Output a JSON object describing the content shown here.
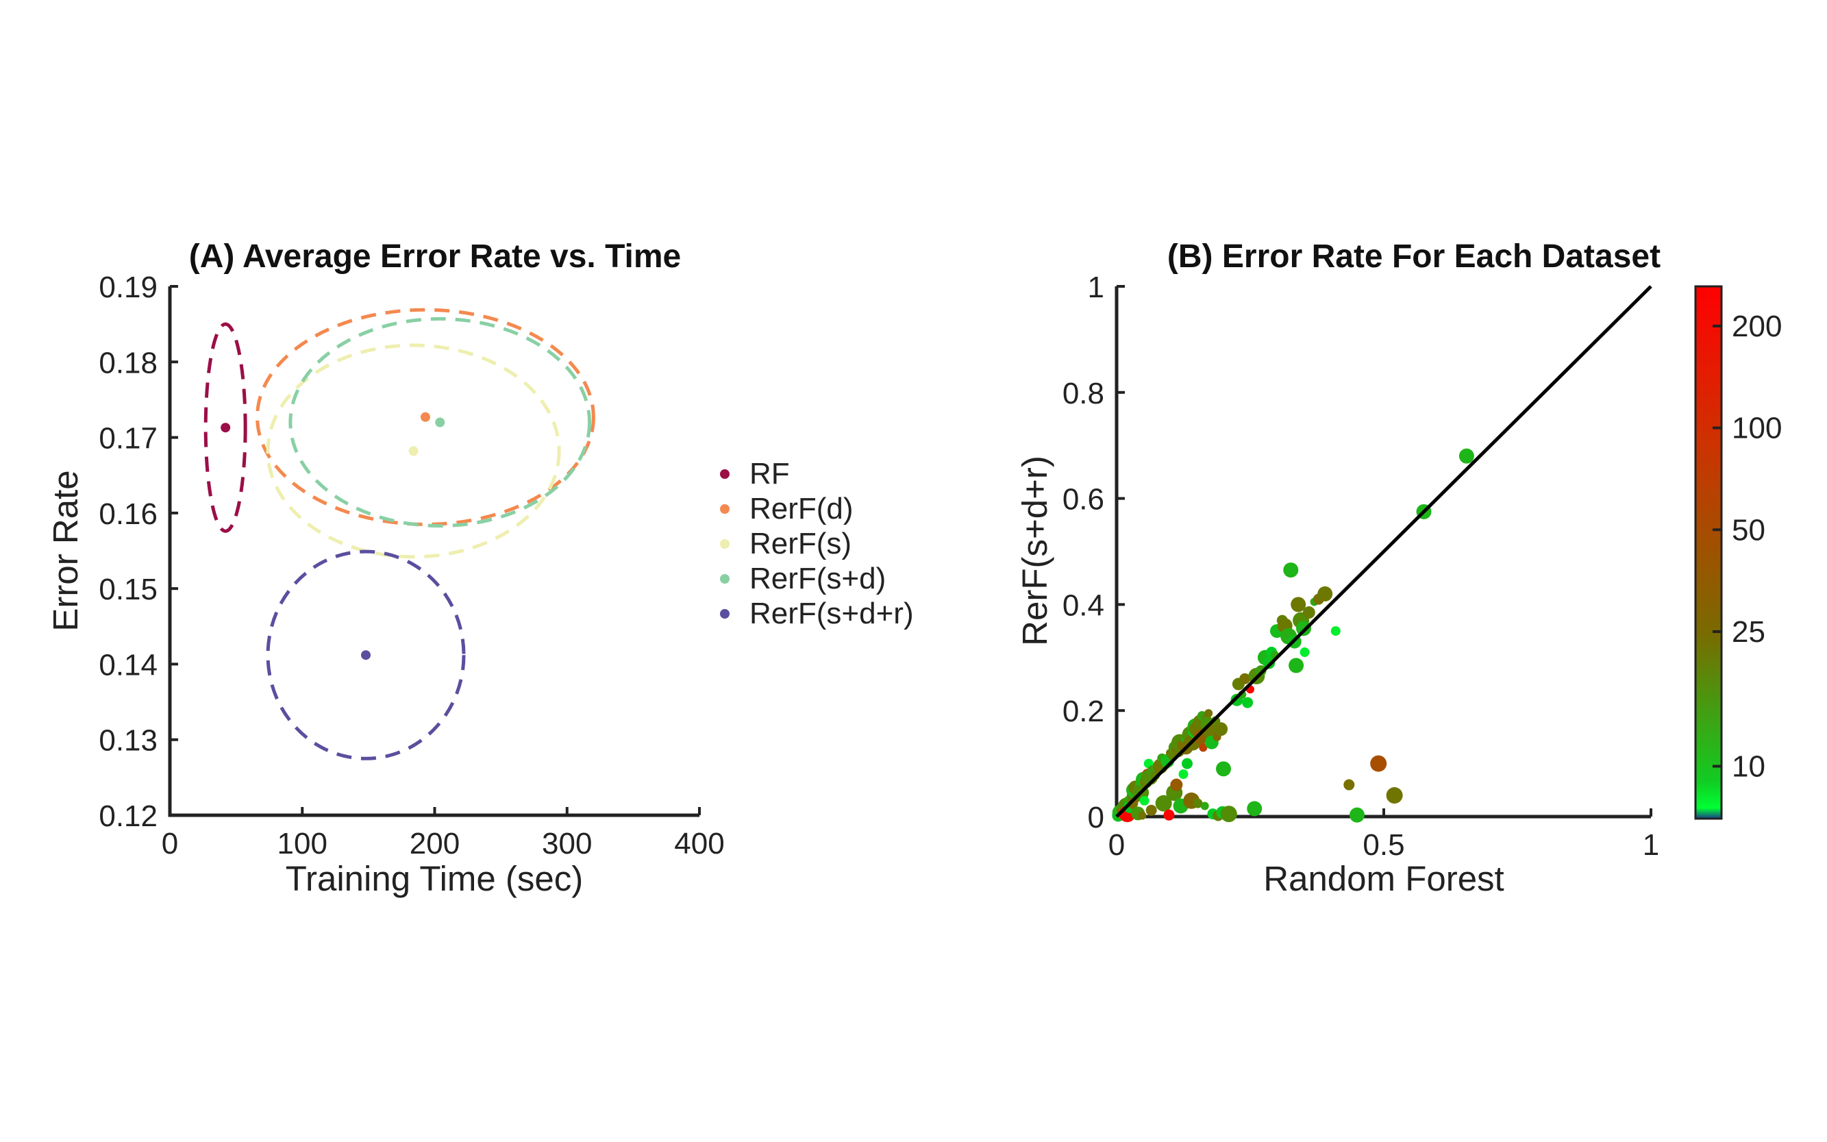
{
  "chart_data": [
    {
      "type": "scatter",
      "title": "(A) Average Error Rate vs. Time",
      "xlabel": "Training Time (sec)",
      "ylabel": "Error Rate",
      "xlim": [
        0,
        400
      ],
      "ylim": [
        0.12,
        0.19
      ],
      "xticks": [
        "0",
        "100",
        "200",
        "300",
        "400"
      ],
      "yticks": [
        "0.12",
        "0.13",
        "0.14",
        "0.15",
        "0.16",
        "0.17",
        "0.18",
        "0.19"
      ],
      "legend_position": "right",
      "series": [
        {
          "name": "RF",
          "color": "#9b0f47",
          "x": 42,
          "y": 0.1713,
          "ellipse": {
            "rx": 15,
            "ry": 0.0137
          }
        },
        {
          "name": "RerF(d)",
          "color": "#f4894f",
          "x": 193,
          "y": 0.1727,
          "ellipse": {
            "rx": 127,
            "ry": 0.0142
          }
        },
        {
          "name": "RerF(s)",
          "color": "#eeeeb0",
          "x": 184,
          "y": 0.1682,
          "ellipse": {
            "rx": 110,
            "ry": 0.014
          }
        },
        {
          "name": "RerF(s+d)",
          "color": "#88d0a4",
          "x": 204,
          "y": 0.172,
          "ellipse": {
            "rx": 113,
            "ry": 0.0137
          }
        },
        {
          "name": "RerF(s+d+r)",
          "color": "#5a4f9e",
          "x": 148,
          "y": 0.1412,
          "ellipse": {
            "rx": 74,
            "ry": 0.0137
          }
        }
      ]
    },
    {
      "type": "scatter",
      "title": "(B) Error Rate For Each Dataset",
      "xlabel": "Random Forest",
      "ylabel": "RerF(s+d+r)",
      "xlim": [
        0,
        1
      ],
      "ylim": [
        0,
        1
      ],
      "xticks": [
        "0",
        "0.5",
        "1"
      ],
      "yticks": [
        "0",
        "0.2",
        "0.4",
        "0.6",
        "0.8",
        "1"
      ],
      "reference_line": "y = x",
      "colorbar": {
        "range": [
          7,
          262
        ],
        "ticks": [
          "10",
          "25",
          "50",
          "100",
          "200"
        ],
        "tick_values": [
          10,
          25,
          50,
          100,
          200
        ],
        "colors": [
          "#173c8c",
          "#00ff33",
          "#00cc22",
          "#6a7a00",
          "#cc3300",
          "#ff0000"
        ]
      },
      "points": [
        [
          0.003,
          0.002,
          10
        ],
        [
          0.006,
          0.008,
          12
        ],
        [
          0.01,
          0.004,
          15
        ],
        [
          0.012,
          0.015,
          18
        ],
        [
          0.015,
          0.01,
          40
        ],
        [
          0.018,
          0.02,
          20
        ],
        [
          0.02,
          0.005,
          230
        ],
        [
          0.022,
          0.03,
          15
        ],
        [
          0.025,
          0.018,
          10
        ],
        [
          0.028,
          0.04,
          22
        ],
        [
          0.03,
          0.025,
          30
        ],
        [
          0.032,
          0.05,
          12
        ],
        [
          0.035,
          0.055,
          25
        ],
        [
          0.038,
          0.035,
          35
        ],
        [
          0.04,
          0.006,
          18
        ],
        [
          0.042,
          0.06,
          14
        ],
        [
          0.045,
          0.045,
          20
        ],
        [
          0.048,
          0.002,
          28
        ],
        [
          0.05,
          0.07,
          12
        ],
        [
          0.052,
          0.03,
          8
        ],
        [
          0.055,
          0.065,
          24
        ],
        [
          0.058,
          0.08,
          240
        ],
        [
          0.06,
          0.1,
          8
        ],
        [
          0.062,
          0.075,
          20
        ],
        [
          0.065,
          0.012,
          30
        ],
        [
          0.068,
          0.085,
          17
        ],
        [
          0.072,
          0.078,
          22
        ],
        [
          0.075,
          0.09,
          14
        ],
        [
          0.078,
          0.088,
          35
        ],
        [
          0.082,
          0.095,
          26
        ],
        [
          0.085,
          0.11,
          15
        ],
        [
          0.088,
          0.025,
          20
        ],
        [
          0.09,
          0.1,
          24
        ],
        [
          0.095,
          0.105,
          11
        ],
        [
          0.098,
          0.003,
          240
        ],
        [
          0.1,
          0.12,
          28
        ],
        [
          0.105,
          0.115,
          22
        ],
        [
          0.108,
          0.045,
          20
        ],
        [
          0.11,
          0.13,
          18
        ],
        [
          0.112,
          0.06,
          45
        ],
        [
          0.115,
          0.125,
          25
        ],
        [
          0.118,
          0.14,
          20
        ],
        [
          0.12,
          0.02,
          12
        ],
        [
          0.123,
          0.135,
          30
        ],
        [
          0.125,
          0.08,
          8
        ],
        [
          0.128,
          0.145,
          14
        ],
        [
          0.13,
          0.13,
          32
        ],
        [
          0.132,
          0.1,
          9
        ],
        [
          0.135,
          0.15,
          23
        ],
        [
          0.138,
          0.155,
          20
        ],
        [
          0.14,
          0.03,
          34
        ],
        [
          0.142,
          0.14,
          27
        ],
        [
          0.145,
          0.16,
          10
        ],
        [
          0.148,
          0.17,
          13
        ],
        [
          0.15,
          0.165,
          26
        ],
        [
          0.152,
          0.025,
          22
        ],
        [
          0.155,
          0.18,
          24
        ],
        [
          0.158,
          0.15,
          40
        ],
        [
          0.16,
          0.19,
          15
        ],
        [
          0.162,
          0.13,
          70
        ],
        [
          0.165,
          0.02,
          14
        ],
        [
          0.168,
          0.185,
          22
        ],
        [
          0.17,
          0.175,
          18
        ],
        [
          0.172,
          0.195,
          28
        ],
        [
          0.175,
          0.16,
          26
        ],
        [
          0.178,
          0.14,
          11
        ],
        [
          0.18,
          0.005,
          9
        ],
        [
          0.185,
          0.18,
          22
        ],
        [
          0.188,
          0.15,
          35
        ],
        [
          0.19,
          0.002,
          23
        ],
        [
          0.195,
          0.165,
          25
        ],
        [
          0.198,
          0.008,
          10
        ],
        [
          0.2,
          0.09,
          12
        ],
        [
          0.205,
          0.003,
          8
        ],
        [
          0.21,
          0.005,
          20
        ],
        [
          0.225,
          0.22,
          10
        ],
        [
          0.228,
          0.25,
          24
        ],
        [
          0.235,
          0.23,
          14
        ],
        [
          0.24,
          0.26,
          30
        ],
        [
          0.245,
          0.215,
          9
        ],
        [
          0.25,
          0.24,
          245
        ],
        [
          0.258,
          0.015,
          12
        ],
        [
          0.262,
          0.265,
          20
        ],
        [
          0.27,
          0.275,
          16
        ],
        [
          0.278,
          0.3,
          12
        ],
        [
          0.285,
          0.29,
          10
        ],
        [
          0.29,
          0.31,
          9
        ],
        [
          0.296,
          0.305,
          14
        ],
        [
          0.3,
          0.35,
          11
        ],
        [
          0.31,
          0.37,
          23
        ],
        [
          0.315,
          0.36,
          26
        ],
        [
          0.322,
          0.34,
          13
        ],
        [
          0.326,
          0.465,
          12
        ],
        [
          0.333,
          0.33,
          11
        ],
        [
          0.336,
          0.285,
          12
        ],
        [
          0.34,
          0.4,
          26
        ],
        [
          0.345,
          0.37,
          20
        ],
        [
          0.35,
          0.355,
          12
        ],
        [
          0.352,
          0.31,
          8
        ],
        [
          0.36,
          0.385,
          24
        ],
        [
          0.37,
          0.405,
          14
        ],
        [
          0.378,
          0.41,
          30
        ],
        [
          0.39,
          0.42,
          26
        ],
        [
          0.41,
          0.35,
          8
        ],
        [
          0.435,
          0.06,
          30
        ],
        [
          0.45,
          0.003,
          12
        ],
        [
          0.49,
          0.1,
          55
        ],
        [
          0.52,
          0.04,
          27
        ],
        [
          0.575,
          0.575,
          12
        ],
        [
          0.655,
          0.68,
          12
        ]
      ]
    }
  ]
}
